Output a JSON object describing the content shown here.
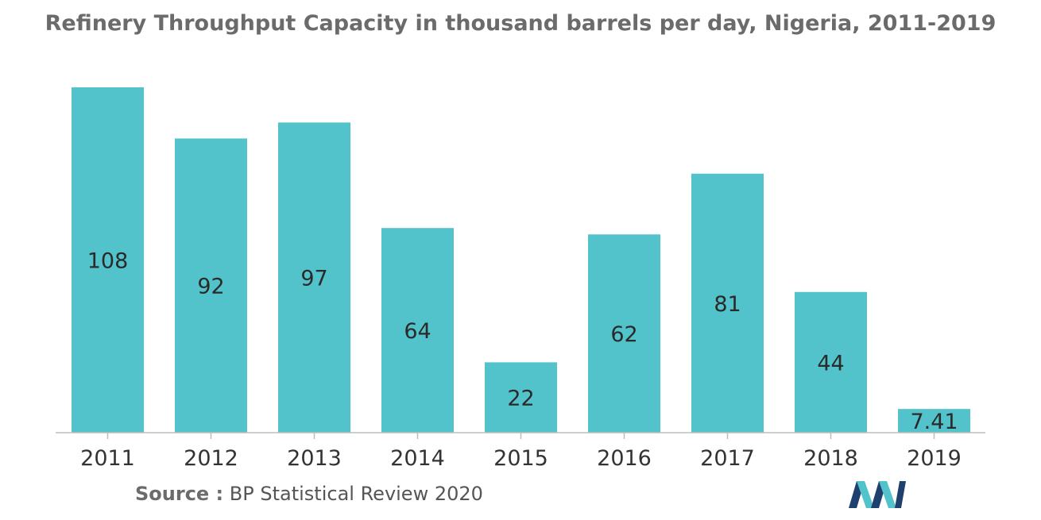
{
  "chart_data": {
    "type": "bar",
    "title": "Refinery Throughput Capacity in thousand barrels per day, Nigeria, 2011-2019",
    "categories": [
      "2011",
      "2012",
      "2013",
      "2014",
      "2015",
      "2016",
      "2017",
      "2018",
      "2019"
    ],
    "values": [
      108,
      92,
      97,
      64,
      22,
      62,
      81,
      44,
      7.41
    ],
    "data_labels": [
      "108",
      "92",
      "97",
      "64",
      "22",
      "62",
      "81",
      "44",
      "7.41"
    ],
    "xlabel": "",
    "ylabel": "",
    "ylim": [
      0,
      108
    ],
    "grid": false,
    "legend": "none",
    "bar_color": "#52c3cb",
    "axis_color": "#bdbdbd"
  },
  "source": {
    "label": "Source :",
    "text": "BP Statistical Review 2020"
  },
  "logo": {
    "icon": "mordor-intelligence-logo-icon",
    "colors": [
      "#1f3f6e",
      "#52c3cb"
    ]
  }
}
